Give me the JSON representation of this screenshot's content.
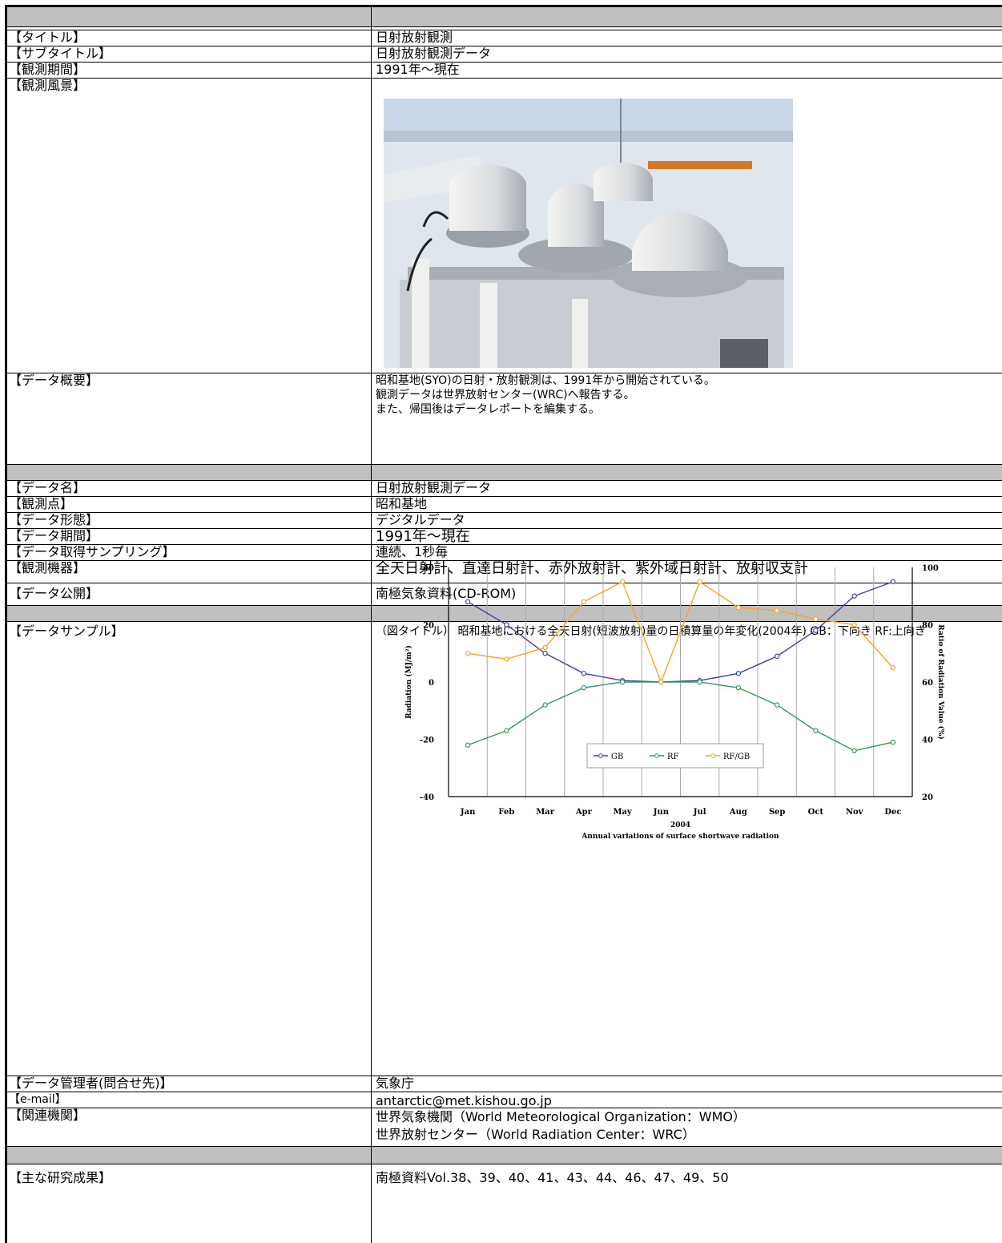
{
  "rows": {
    "title": {
      "label": "【タイトル】",
      "value": "日射放射観測"
    },
    "subtitle": {
      "label": "【サブタイトル】",
      "value": "日射放射観測データ"
    },
    "period": {
      "label": "【観測期間】",
      "value": "1991年～現在"
    },
    "scene": {
      "label": "【観測風景】"
    },
    "overview": {
      "label": "【データ概要】",
      "lines": [
        "昭和基地(SYO)の日射・放射観測は、1991年から開始されている。",
        "観測データは世界放射センター(WRC)へ報告する。",
        "また、帰国後はデータレポートを編集する。"
      ]
    },
    "data_name": {
      "label": "【データ名】",
      "value": "日射放射観測データ"
    },
    "station": {
      "label": "【観測点】",
      "value": "昭和基地"
    },
    "format": {
      "label": "【データ形態】",
      "value": "デジタルデータ"
    },
    "data_period": {
      "label": "【データ期間】",
      "value": "1991年～現在"
    },
    "sampling": {
      "label": "【データ取得サンプリング】",
      "value": "連続、1秒毎"
    },
    "instruments": {
      "label": "【観測機器】",
      "value": "全天日射計、直達日射計、赤外放射計、紫外域日射計、放射収支計"
    },
    "publication": {
      "label": "【データ公開】",
      "value": "南極気象資料(CD-ROM)"
    },
    "sample": {
      "label": "【データサンプル】",
      "caption": "（図タイトル） 昭和基地における全天日射(短波放射)量の日積算量の年変化(2004年) GB：下向き RF:上向き"
    },
    "manager": {
      "label": "【データ管理者(問合せ先)】",
      "value": "気象庁"
    },
    "email": {
      "label": "【e-mail】",
      "value": "antarctic@met.kishou.go.jp"
    },
    "related": {
      "label": "【関連機関】",
      "lines": [
        "世界気象機関（World Meteorological Organization：WMO）",
        "世界放射センター（World Radiation Center：WRC）"
      ]
    },
    "results": {
      "label": "【主な研究成果】",
      "value": "南極資料Vol.38、39、40、41、43、44、46、47、49、50"
    }
  },
  "chart_data": {
    "type": "line",
    "categories": [
      "Jan",
      "Feb",
      "Mar",
      "Apr",
      "May",
      "Jun",
      "Jul",
      "Aug",
      "Sep",
      "Oct",
      "Nov",
      "Dec"
    ],
    "xlabel": "2004",
    "subtitle": "Annual variations of surface shortwave radiation",
    "ylabel": "Radiation (MJ/m²)",
    "y2label": "Ratio of Radiation Value (%)",
    "ylim": [
      -40,
      40
    ],
    "y2lim": [
      20,
      100
    ],
    "y_ticks": [
      "40",
      "20",
      "0",
      "-20",
      "-40"
    ],
    "y2_ticks": [
      "100",
      "80",
      "60",
      "40",
      "20"
    ],
    "grid": "vertical month separators",
    "legend_placement": "bottom-center",
    "series": [
      {
        "name": "GB",
        "color": "#4040b0",
        "axis": "left",
        "values": [
          28,
          20,
          10,
          3,
          0.5,
          0,
          0.5,
          3,
          9,
          18,
          30,
          35
        ]
      },
      {
        "name": "RF",
        "color": "#2e9a5a",
        "axis": "left",
        "values": [
          -22,
          -17,
          -8,
          -2,
          0,
          0,
          0,
          -2,
          -8,
          -17,
          -24,
          -21
        ]
      },
      {
        "name": "RF/GB",
        "color": "#f5a623",
        "axis": "right",
        "values": [
          70,
          68,
          72,
          88,
          95,
          60,
          95,
          86,
          85,
          82,
          80,
          65
        ]
      }
    ]
  }
}
